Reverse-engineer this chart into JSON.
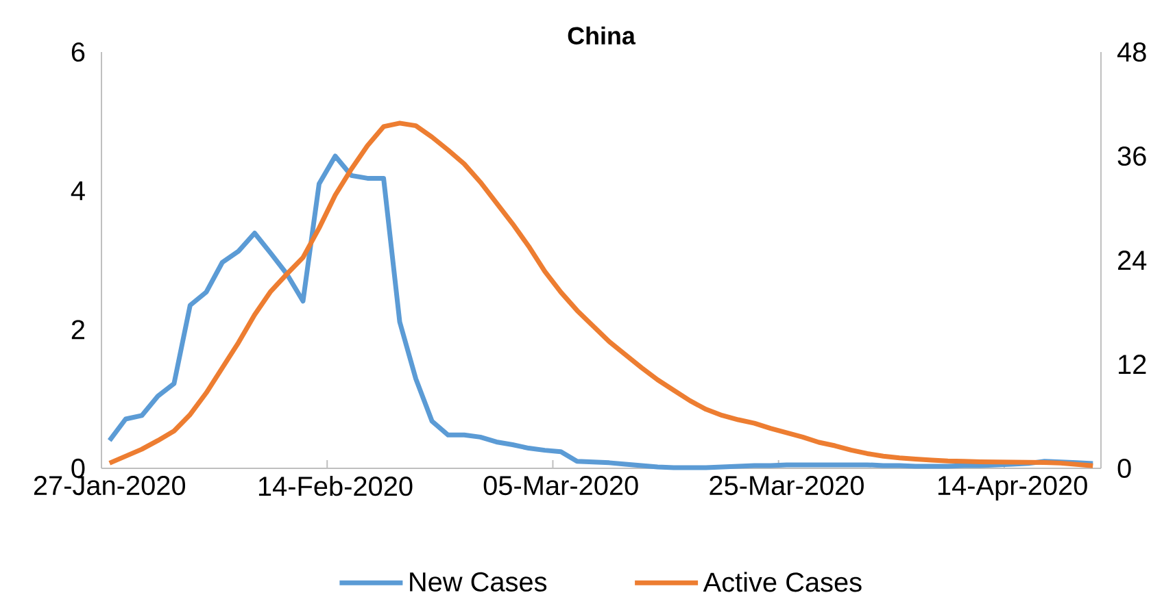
{
  "chart_data": {
    "type": "line",
    "title": "China",
    "categories": [
      "27-Jan-2020",
      null,
      null,
      null,
      null,
      null,
      null,
      null,
      null,
      null,
      null,
      null,
      null,
      null,
      "14-Feb-2020",
      null,
      null,
      null,
      null,
      null,
      null,
      null,
      null,
      null,
      null,
      null,
      null,
      null,
      "05-Mar-2020",
      null,
      null,
      null,
      null,
      null,
      null,
      null,
      null,
      null,
      null,
      null,
      null,
      null,
      "25-Mar-2020",
      null,
      null,
      null,
      null,
      null,
      null,
      null,
      null,
      null,
      null,
      null,
      null,
      null,
      "14-Apr-2020",
      null,
      null,
      null,
      null,
      null
    ],
    "series": [
      {
        "name": "New Cases",
        "color": "#5b9bd5",
        "values": [
          0.4,
          0.71,
          0.76,
          1.04,
          1.22,
          2.35,
          2.54,
          2.97,
          3.13,
          3.39,
          3.1,
          2.8,
          2.41,
          4.1,
          4.5,
          4.22,
          4.18,
          4.18,
          2.11,
          1.29,
          0.68,
          0.48,
          0.48,
          0.45,
          0.38,
          0.34,
          0.29,
          0.26,
          0.24,
          0.1,
          0.09,
          0.08,
          0.06,
          0.04,
          0.02,
          0.01,
          0.01,
          0.01,
          0.02,
          0.03,
          0.04,
          0.04,
          0.05,
          0.05,
          0.05,
          0.05,
          0.05,
          0.05,
          0.04,
          0.04,
          0.03,
          0.03,
          0.03,
          0.04,
          0.04,
          0.05,
          0.06,
          0.07,
          0.1,
          0.09,
          0.08,
          0.07
        ]
      },
      {
        "name": "Active Cases",
        "color": "#ed7d31",
        "axis": "y2",
        "values": [
          0.6,
          1.4,
          2.2,
          3.2,
          4.3,
          6.2,
          8.7,
          11.6,
          14.5,
          17.7,
          20.4,
          22.4,
          24.3,
          27.7,
          31.5,
          34.5,
          37.2,
          39.4,
          39.8,
          39.5,
          38.2,
          36.7,
          35.1,
          33.0,
          30.6,
          28.2,
          25.6,
          22.7,
          20.3,
          18.2,
          16.4,
          14.6,
          13.1,
          11.6,
          10.2,
          9.0,
          7.8,
          6.8,
          6.1,
          5.6,
          5.2,
          4.6,
          4.1,
          3.6,
          3.0,
          2.6,
          2.1,
          1.7,
          1.4,
          1.2,
          1.06,
          0.95,
          0.85,
          0.8,
          0.75,
          0.72,
          0.7,
          0.68,
          0.66,
          0.6,
          0.45,
          0.3
        ]
      }
    ],
    "ylim": [
      0,
      6
    ],
    "yticks": [
      0,
      2,
      4,
      6
    ],
    "y2lim": [
      0,
      48
    ],
    "y2ticks": [
      0,
      12,
      24,
      36,
      48
    ],
    "grid": false,
    "legend": "bottom"
  }
}
